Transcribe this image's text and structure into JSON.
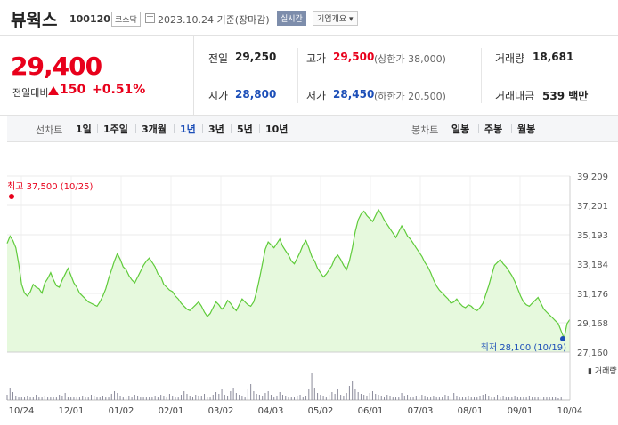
{
  "header": {
    "name": "뷰웍스",
    "code": "100120",
    "market": "코스닥",
    "date": "2023.10.24 기준(장마감)",
    "live": "실시간",
    "info": "기업개요 ▾"
  },
  "price": {
    "current": "29,400",
    "change_label": "전일대비",
    "change_value": "150",
    "change_percent": "+0.51%"
  },
  "stats": {
    "prev_label": "전일",
    "prev_value": "29,250",
    "high_label": "고가",
    "high_value": "29,500",
    "high_sub": "(상한가 38,000)",
    "volume_label": "거래량",
    "volume_value": "18,681",
    "open_label": "시가",
    "open_value": "28,800",
    "low_label": "저가",
    "low_value": "28,450",
    "low_sub": "(하한가 20,500)",
    "amount_label": "거래대금",
    "amount_value": "539 백만"
  },
  "periods": {
    "line_label": "선차트",
    "line_items": [
      "1일",
      "1주일",
      "3개월",
      "1년",
      "3년",
      "5년",
      "10년"
    ],
    "active": "1년",
    "candle_label": "봉차트",
    "candle_items": [
      "일봉",
      "주봉",
      "월봉"
    ]
  },
  "colors": {
    "up": "#e8001b",
    "down": "#1d4fb8",
    "line": "#5fcb3a",
    "area": "#e6f9dd",
    "volume": "#8a8a9a"
  },
  "chart_data": {
    "type": "area",
    "ylim": [
      27160,
      39209
    ],
    "y_ticks": [
      "39,209",
      "37,201",
      "35,193",
      "33,184",
      "31,176",
      "29,168",
      "27,160"
    ],
    "x_ticks": [
      "10/24",
      "12/01",
      "01/02",
      "02/01",
      "03/02",
      "04/03",
      "05/02",
      "06/01",
      "07/03",
      "08/01",
      "09/01",
      "10/04"
    ],
    "high_label": "최고 37,500 (10/25)",
    "low_label": "최저 28,100 (10/19)",
    "volume_legend": "거래량",
    "values": [
      34600,
      35100,
      34800,
      34300,
      33200,
      31800,
      31200,
      31000,
      31300,
      31800,
      31600,
      31500,
      31200,
      31900,
      32200,
      32600,
      32100,
      31700,
      31600,
      32100,
      32500,
      32900,
      32400,
      31900,
      31600,
      31200,
      31000,
      30800,
      30600,
      30500,
      30400,
      30300,
      30600,
      31000,
      31500,
      32200,
      32800,
      33400,
      33900,
      33500,
      33000,
      32800,
      32400,
      32100,
      31900,
      32300,
      32700,
      33100,
      33400,
      33600,
      33300,
      33000,
      32500,
      32300,
      31800,
      31600,
      31400,
      31300,
      31000,
      30800,
      30500,
      30300,
      30100,
      30000,
      30200,
      30400,
      30600,
      30300,
      29900,
      29600,
      29800,
      30200,
      30600,
      30400,
      30100,
      30300,
      30700,
      30500,
      30200,
      30000,
      30400,
      30800,
      30600,
      30400,
      30300,
      30600,
      31300,
      32200,
      33200,
      34200,
      34700,
      34500,
      34300,
      34600,
      34900,
      34400,
      34100,
      33800,
      33400,
      33200,
      33600,
      34000,
      34500,
      34800,
      34300,
      33700,
      33400,
      32900,
      32600,
      32300,
      32500,
      32800,
      33100,
      33600,
      33800,
      33500,
      33100,
      32800,
      33400,
      34300,
      35400,
      36200,
      36600,
      36800,
      36500,
      36300,
      36100,
      36500,
      36900,
      36600,
      36200,
      35900,
      35600,
      35300,
      35000,
      35400,
      35800,
      35500,
      35100,
      34900,
      34600,
      34300,
      34000,
      33700,
      33300,
      33000,
      32600,
      32100,
      31700,
      31400,
      31200,
      31000,
      30800,
      30500,
      30600,
      30800,
      30500,
      30300,
      30200,
      30400,
      30300,
      30100,
      30000,
      30200,
      30500,
      31100,
      31700,
      32400,
      33100,
      33300,
      33500,
      33200,
      33000,
      32700,
      32400,
      32000,
      31500,
      31000,
      30600,
      30400,
      30300,
      30500,
      30700,
      30900,
      30500,
      30100,
      29900,
      29700,
      29500,
      29300,
      29100,
      28600,
      28100,
      29100,
      29400
    ]
  }
}
